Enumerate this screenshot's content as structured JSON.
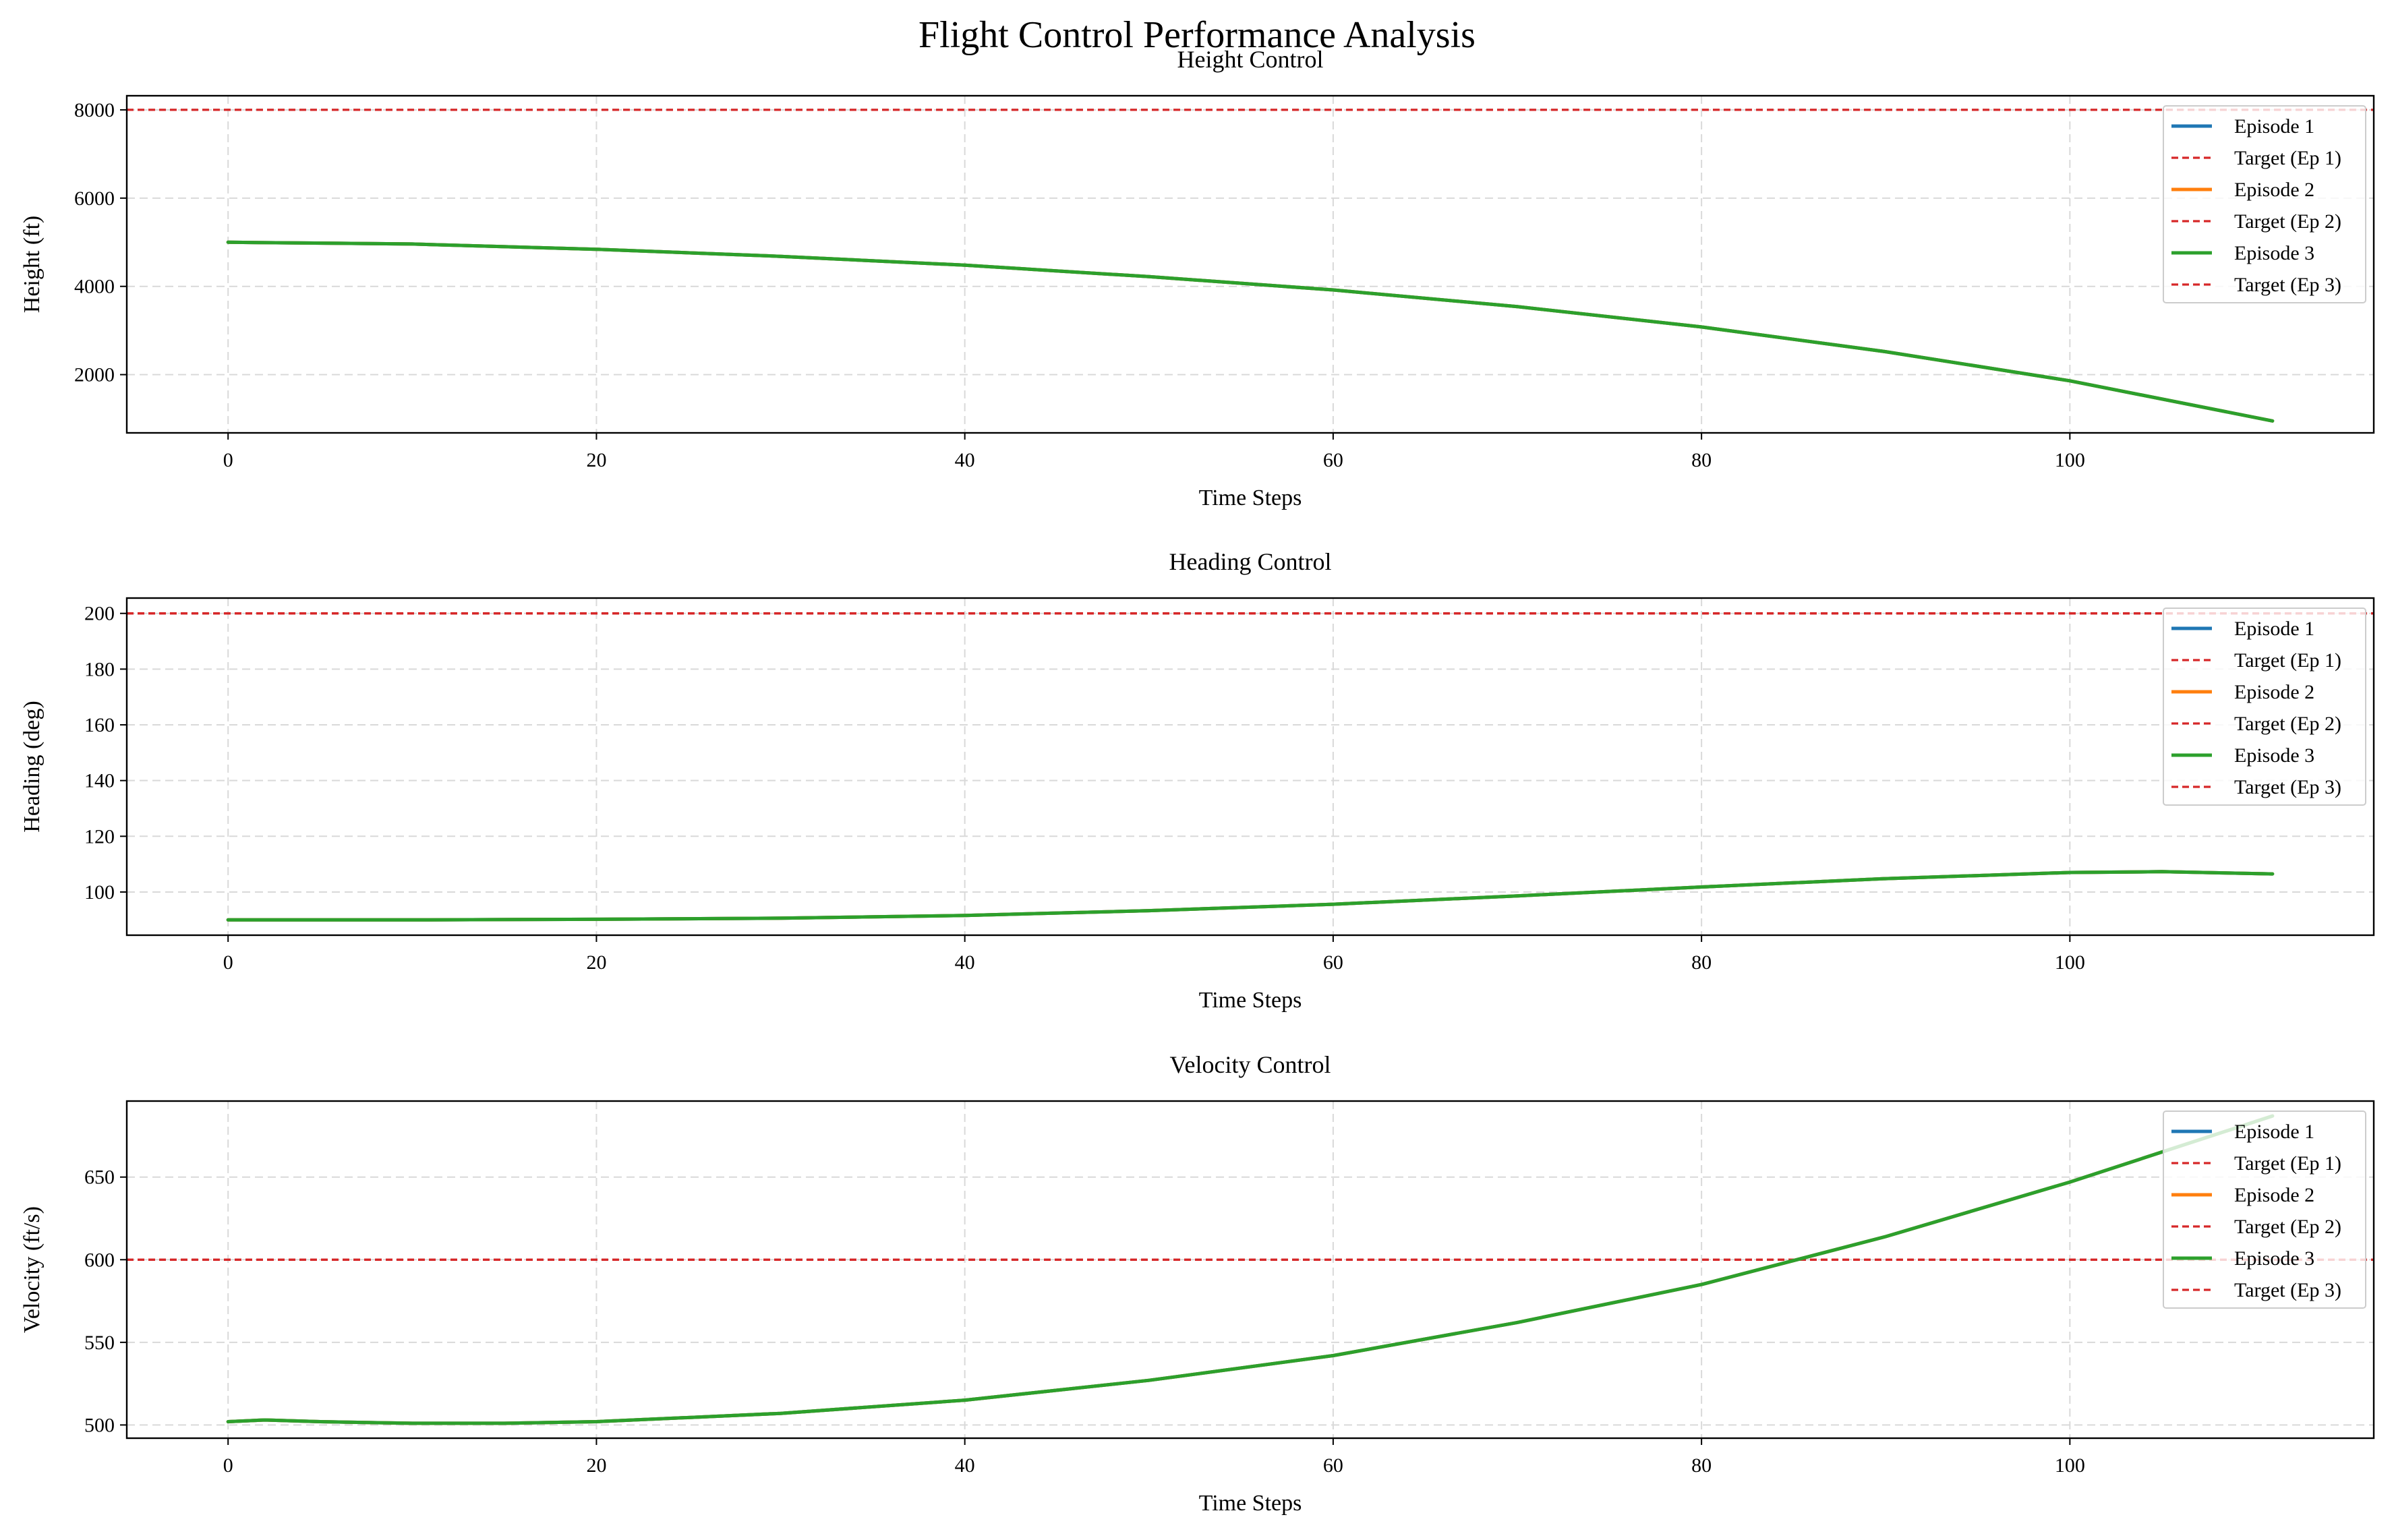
{
  "title": "Flight Control Performance Analysis",
  "chart_data": [
    {
      "type": "line",
      "title": "Height Control",
      "xlabel": "Time Steps",
      "ylabel": "Height (ft)",
      "xlim": [
        -5.5,
        116.5
      ],
      "ylim": [
        680,
        8320
      ],
      "xticks": [
        0,
        20,
        40,
        60,
        80,
        100
      ],
      "yticks": [
        2000,
        4000,
        6000,
        8000
      ],
      "grid": true,
      "legend_position": "upper-right",
      "series": [
        {
          "name": "Episode 1",
          "color": "#1f77b4",
          "style": "solid",
          "x": [
            0,
            10,
            20,
            30,
            40,
            50,
            60,
            70,
            80,
            90,
            100,
            111
          ],
          "y": [
            5000,
            4960,
            4840,
            4680,
            4480,
            4220,
            3920,
            3540,
            3080,
            2520,
            1860,
            950
          ]
        },
        {
          "name": "Target (Ep 1)",
          "color": "#d62728",
          "style": "dashed",
          "target": 8000
        },
        {
          "name": "Episode 2",
          "color": "#ff7f0e",
          "style": "solid",
          "x": [
            0,
            10,
            20,
            30,
            40,
            50,
            60,
            70,
            80,
            90,
            100,
            111
          ],
          "y": [
            5000,
            4960,
            4840,
            4680,
            4480,
            4220,
            3920,
            3540,
            3080,
            2520,
            1860,
            950
          ]
        },
        {
          "name": "Target (Ep 2)",
          "color": "#d62728",
          "style": "dashed",
          "target": 8000
        },
        {
          "name": "Episode 3",
          "color": "#2ca02c",
          "style": "solid",
          "x": [
            0,
            10,
            20,
            30,
            40,
            50,
            60,
            70,
            80,
            90,
            100,
            111
          ],
          "y": [
            5000,
            4960,
            4840,
            4680,
            4480,
            4220,
            3920,
            3540,
            3080,
            2520,
            1860,
            950
          ]
        },
        {
          "name": "Target (Ep 3)",
          "color": "#d62728",
          "style": "dashed",
          "target": 8000
        }
      ]
    },
    {
      "type": "line",
      "title": "Heading Control",
      "xlabel": "Time Steps",
      "ylabel": "Heading (deg)",
      "xlim": [
        -5.5,
        116.5
      ],
      "ylim": [
        84.5,
        205.5
      ],
      "xticks": [
        0,
        20,
        40,
        60,
        80,
        100
      ],
      "yticks": [
        100,
        120,
        140,
        160,
        180,
        200
      ],
      "grid": true,
      "legend_position": "upper-right",
      "series": [
        {
          "name": "Episode 1",
          "color": "#1f77b4",
          "style": "solid",
          "x": [
            0,
            10,
            20,
            30,
            40,
            50,
            60,
            70,
            80,
            90,
            100,
            105,
            111
          ],
          "y": [
            90,
            90,
            90.2,
            90.6,
            91.6,
            93.3,
            95.6,
            98.6,
            101.8,
            104.8,
            107,
            107.3,
            106.5
          ]
        },
        {
          "name": "Target (Ep 1)",
          "color": "#d62728",
          "style": "dashed",
          "target": 200
        },
        {
          "name": "Episode 2",
          "color": "#ff7f0e",
          "style": "solid",
          "x": [
            0,
            10,
            20,
            30,
            40,
            50,
            60,
            70,
            80,
            90,
            100,
            105,
            111
          ],
          "y": [
            90,
            90,
            90.2,
            90.6,
            91.6,
            93.3,
            95.6,
            98.6,
            101.8,
            104.8,
            107,
            107.3,
            106.5
          ]
        },
        {
          "name": "Target (Ep 2)",
          "color": "#d62728",
          "style": "dashed",
          "target": 200
        },
        {
          "name": "Episode 3",
          "color": "#2ca02c",
          "style": "solid",
          "x": [
            0,
            10,
            20,
            30,
            40,
            50,
            60,
            70,
            80,
            90,
            100,
            105,
            111
          ],
          "y": [
            90,
            90,
            90.2,
            90.6,
            91.6,
            93.3,
            95.6,
            98.6,
            101.8,
            104.8,
            107,
            107.3,
            106.5
          ]
        },
        {
          "name": "Target (Ep 3)",
          "color": "#d62728",
          "style": "dashed",
          "target": 200
        }
      ]
    },
    {
      "type": "line",
      "title": "Velocity Control",
      "xlabel": "Time Steps",
      "ylabel": "Velocity (ft/s)",
      "xlim": [
        -5.5,
        116.5
      ],
      "ylim": [
        492,
        696
      ],
      "xticks": [
        0,
        20,
        40,
        60,
        80,
        100
      ],
      "yticks": [
        500,
        550,
        600,
        650
      ],
      "grid": true,
      "legend_position": "upper-right",
      "series": [
        {
          "name": "Episode 1",
          "color": "#1f77b4",
          "style": "solid",
          "x": [
            0,
            2,
            5,
            10,
            15,
            20,
            30,
            40,
            50,
            60,
            70,
            80,
            90,
            100,
            111
          ],
          "y": [
            502,
            503,
            502,
            501,
            501,
            502,
            507,
            515,
            527,
            542,
            562,
            585,
            614,
            647,
            687
          ]
        },
        {
          "name": "Target (Ep 1)",
          "color": "#d62728",
          "style": "dashed",
          "target": 600
        },
        {
          "name": "Episode 2",
          "color": "#ff7f0e",
          "style": "solid",
          "x": [
            0,
            2,
            5,
            10,
            15,
            20,
            30,
            40,
            50,
            60,
            70,
            80,
            90,
            100,
            111
          ],
          "y": [
            502,
            503,
            502,
            501,
            501,
            502,
            507,
            515,
            527,
            542,
            562,
            585,
            614,
            647,
            687
          ]
        },
        {
          "name": "Target (Ep 2)",
          "color": "#d62728",
          "style": "dashed",
          "target": 600
        },
        {
          "name": "Episode 3",
          "color": "#2ca02c",
          "style": "solid",
          "x": [
            0,
            2,
            5,
            10,
            15,
            20,
            30,
            40,
            50,
            60,
            70,
            80,
            90,
            100,
            111
          ],
          "y": [
            502,
            503,
            502,
            501,
            501,
            502,
            507,
            515,
            527,
            542,
            562,
            585,
            614,
            647,
            687
          ]
        },
        {
          "name": "Target (Ep 3)",
          "color": "#d62728",
          "style": "dashed",
          "target": 600
        }
      ]
    }
  ]
}
